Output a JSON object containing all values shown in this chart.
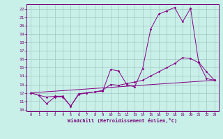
{
  "background_color": "#c8f0e8",
  "grid_color": "#a0c8c0",
  "line_color": "#880088",
  "xlabel": "Windchill (Refroidissement éolien,°C)",
  "xlim": [
    -0.5,
    23.5
  ],
  "ylim": [
    9.8,
    22.6
  ],
  "xticks": [
    0,
    1,
    2,
    3,
    4,
    5,
    6,
    7,
    8,
    9,
    10,
    11,
    12,
    13,
    14,
    15,
    16,
    17,
    18,
    19,
    20,
    21,
    22,
    23
  ],
  "yticks": [
    10,
    11,
    12,
    13,
    14,
    15,
    16,
    17,
    18,
    19,
    20,
    21,
    22
  ],
  "line1_x": [
    0,
    1,
    2,
    3,
    4,
    5,
    6,
    7,
    8,
    9,
    10,
    11,
    12,
    13,
    14,
    15,
    16,
    17,
    18,
    19,
    20
  ],
  "line1_y": [
    12.0,
    11.7,
    10.7,
    11.5,
    11.5,
    10.4,
    11.8,
    12.0,
    12.1,
    12.2,
    14.8,
    14.6,
    13.0,
    12.7,
    14.9,
    19.6,
    21.4,
    21.8,
    22.2,
    20.5,
    22.1
  ],
  "line2_x": [
    20,
    21,
    22,
    23
  ],
  "line2_y": [
    22.1,
    15.7,
    14.5,
    13.5
  ],
  "line3_x": [
    0,
    1,
    2,
    3,
    4,
    5,
    6,
    7,
    8,
    9,
    10,
    11,
    12,
    13,
    14,
    15,
    16,
    17,
    18,
    19,
    20,
    21,
    22,
    23
  ],
  "line3_y": [
    12.0,
    11.7,
    11.5,
    11.6,
    11.6,
    10.4,
    11.9,
    12.0,
    12.1,
    12.3,
    13.0,
    12.9,
    13.1,
    13.3,
    13.5,
    14.0,
    14.5,
    15.0,
    15.5,
    16.2,
    16.1,
    15.6,
    13.7,
    13.5
  ],
  "line4_x": [
    0,
    23
  ],
  "line4_y": [
    12.0,
    13.5
  ]
}
